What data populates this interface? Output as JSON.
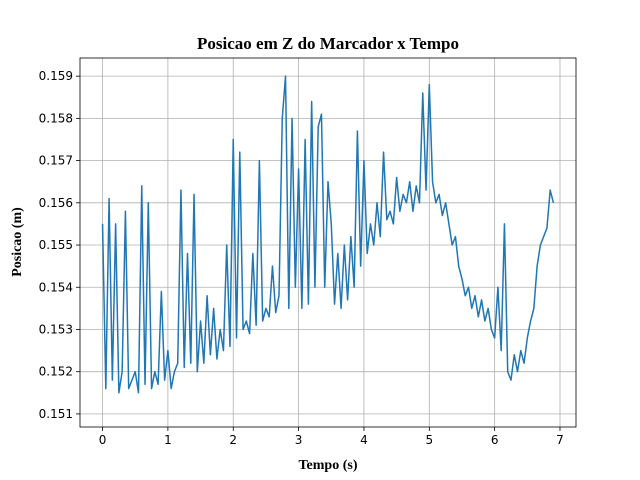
{
  "chart_data": {
    "type": "line",
    "title": "Posicao em Z do Marcador x Tempo",
    "x_label": "Tempo (s)",
    "y_label": "Posicao (m)",
    "x": [
      0,
      0.05,
      0.1,
      0.15,
      0.2,
      0.25,
      0.3,
      0.35,
      0.4,
      0.45,
      0.5,
      0.55,
      0.6,
      0.65,
      0.7,
      0.75,
      0.8,
      0.85,
      0.9,
      0.95,
      1,
      1.05,
      1.1,
      1.15,
      1.2,
      1.25,
      1.3,
      1.35,
      1.4,
      1.45,
      1.5,
      1.55,
      1.6,
      1.65,
      1.7,
      1.75,
      1.8,
      1.85,
      1.9,
      1.95,
      2,
      2.05,
      2.1,
      2.15,
      2.2,
      2.25,
      2.3,
      2.35,
      2.4,
      2.45,
      2.5,
      2.55,
      2.6,
      2.65,
      2.7,
      2.75,
      2.8,
      2.85,
      2.9,
      2.95,
      3,
      3.05,
      3.1,
      3.15,
      3.2,
      3.25,
      3.3,
      3.35,
      3.4,
      3.45,
      3.5,
      3.55,
      3.6,
      3.65,
      3.7,
      3.75,
      3.8,
      3.85,
      3.9,
      3.95,
      4,
      4.05,
      4.1,
      4.15,
      4.2,
      4.25,
      4.3,
      4.35,
      4.4,
      4.45,
      4.5,
      4.55,
      4.6,
      4.65,
      4.7,
      4.75,
      4.8,
      4.85,
      4.9,
      4.95,
      5,
      5.05,
      5.1,
      5.15,
      5.2,
      5.25,
      5.3,
      5.35,
      5.4,
      5.45,
      5.5,
      5.55,
      5.6,
      5.65,
      5.7,
      5.75,
      5.8,
      5.85,
      5.9,
      5.95,
      6,
      6.05,
      6.1,
      6.15,
      6.2,
      6.25,
      6.3,
      6.35,
      6.4,
      6.45,
      6.5,
      6.55,
      6.6,
      6.65,
      6.7,
      6.75,
      6.8,
      6.85,
      6.9
    ],
    "series": [
      {
        "color": "#1f77b4",
        "values": [
          0.1555,
          0.1516,
          0.1561,
          0.1518,
          0.1555,
          0.1515,
          0.152,
          0.1558,
          0.1516,
          0.1518,
          0.152,
          0.1515,
          0.1564,
          0.1517,
          0.156,
          0.1516,
          0.152,
          0.1517,
          0.1539,
          0.1518,
          0.1525,
          0.1516,
          0.152,
          0.1522,
          0.1563,
          0.1521,
          0.1548,
          0.1522,
          0.1562,
          0.152,
          0.1532,
          0.1522,
          0.1538,
          0.1524,
          0.1535,
          0.1523,
          0.153,
          0.1525,
          0.155,
          0.1526,
          0.1575,
          0.1528,
          0.1572,
          0.153,
          0.1532,
          0.1529,
          0.1548,
          0.1531,
          0.157,
          0.1532,
          0.1535,
          0.1533,
          0.1545,
          0.1534,
          0.1538,
          0.158,
          0.159,
          0.1535,
          0.158,
          0.154,
          0.1568,
          0.1535,
          0.1575,
          0.1536,
          0.1584,
          0.154,
          0.1578,
          0.1581,
          0.154,
          0.1565,
          0.1555,
          0.1536,
          0.1548,
          0.1535,
          0.155,
          0.1537,
          0.1552,
          0.154,
          0.1577,
          0.1545,
          0.157,
          0.1548,
          0.1555,
          0.155,
          0.156,
          0.1552,
          0.1572,
          0.1556,
          0.1558,
          0.1555,
          0.1566,
          0.1558,
          0.1562,
          0.156,
          0.1565,
          0.1558,
          0.1564,
          0.156,
          0.1586,
          0.1563,
          0.1588,
          0.1565,
          0.156,
          0.1562,
          0.1557,
          0.156,
          0.1555,
          0.155,
          0.1552,
          0.1545,
          0.1542,
          0.1538,
          0.154,
          0.1535,
          0.1538,
          0.1533,
          0.1537,
          0.1532,
          0.1535,
          0.153,
          0.1528,
          0.154,
          0.1525,
          0.1555,
          0.152,
          0.1518,
          0.1524,
          0.152,
          0.1525,
          0.1522,
          0.1528,
          0.1532,
          0.1535,
          0.1545,
          0.155,
          0.1552,
          0.1554,
          0.1563,
          0.156
        ]
      }
    ],
    "xlim": [
      -0.345,
      7.245
    ],
    "ylim": [
      0.15069,
      0.15943
    ],
    "xticks": [
      0,
      1,
      2,
      3,
      4,
      5,
      6,
      7
    ],
    "yticks": [
      0.151,
      0.152,
      0.153,
      0.154,
      0.155,
      0.156,
      0.157,
      0.158,
      0.159
    ],
    "grid": true
  }
}
